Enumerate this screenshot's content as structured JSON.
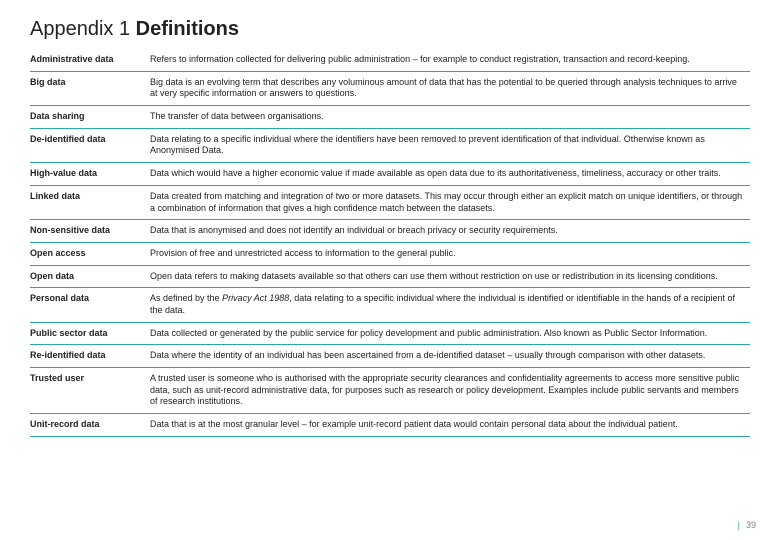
{
  "title_prefix": "Appendix 1 ",
  "title_bold": "Definitions",
  "page_number": "39",
  "accent_color": "#2aa8a8",
  "rows": [
    {
      "term": "Administrative data",
      "def": "Refers to information collected for delivering public administration – for example to conduct registration, transaction and record-keeping."
    },
    {
      "term": "Big data",
      "def": "Big data is an evolving term that describes any voluminous amount of data that has the potential to be queried through analysis techniques to arrive at very specific information or answers to questions."
    },
    {
      "term": "Data sharing",
      "def": "The transfer of data between organisations."
    },
    {
      "term": "De-identified data",
      "def": "Data relating to a specific individual where the identifiers have been removed to prevent identification of that individual. Otherwise known as Anonymised Data."
    },
    {
      "term": "High-value data",
      "def": "Data which would have a higher economic value if made available as open data due to its authoritativeness, timeliness, accuracy or other traits."
    },
    {
      "term": "Linked data",
      "def": "Data created from matching and integration of two or more datasets. This may occur through either an explicit match on unique identifiers, or through a combination of information that gives a high confidence match between the datasets."
    },
    {
      "term": "Non-sensitive data",
      "def": "Data that is anonymised and does not identify an individual or breach privacy or security requirements."
    },
    {
      "term": "Open access",
      "def": "Provision of free and unrestricted access to information to the general public."
    },
    {
      "term": "Open data",
      "def": "Open data refers to making datasets available so that others can use them without restriction on use or redistribution in its licensing conditions."
    },
    {
      "term": "Personal data",
      "def_pre": "As defined by the ",
      "def_italic": "Privacy Act 1988",
      "def_post": ", data relating to a specific individual where the individual is identified or identifiable in the hands of a recipient of the data."
    },
    {
      "term": "Public sector data",
      "def": "Data collected or generated by the public service for policy development and public administration. Also known as Public Sector Information."
    },
    {
      "term": "Re-identified data",
      "def": "Data where the identity of an individual has been ascertained from a de-identified dataset – usually through comparison with other datasets."
    },
    {
      "term": "Trusted user",
      "def": "A trusted user is someone who is authorised with the appropriate security clearances and confidentiality agreements to access more sensitive public data, such as unit-record administrative data, for purposes such as research or policy development. Examples include public servants and members of research institutions."
    },
    {
      "term": "Unit-record data",
      "def": "Data that is at the most granular level – for example unit-record patient data would contain personal data about the individual patient."
    }
  ]
}
